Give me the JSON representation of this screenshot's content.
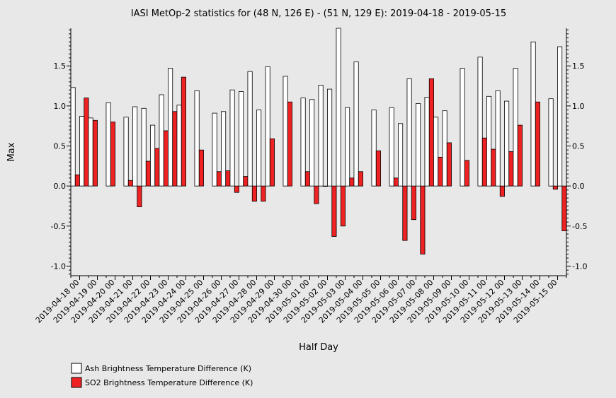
{
  "chart_data": {
    "type": "bar",
    "title": "IASI MetOp-2 statistics for (48 N, 126 E) - (51 N, 129 E): 2019-04-18 - 2019-05-15",
    "xlabel": "Half Day",
    "ylabel": "Max",
    "ylim": [
      -1.12,
      1.97
    ],
    "yticks": [
      "-1.0",
      "-0.5",
      "0.0",
      "0.5",
      "1.0",
      "1.5"
    ],
    "grid": false,
    "legend_position": "bottom-left",
    "x_tick_labels": [
      "2019-04-18 00",
      "2019-04-19 00",
      "2019-04-20 00",
      "2019-04-21 00",
      "2019-04-22 00",
      "2019-04-23 00",
      "2019-04-24 00",
      "2019-04-25 00",
      "2019-04-26 00",
      "2019-04-27 00",
      "2019-04-28 00",
      "2019-04-29 00",
      "2019-04-30 00",
      "2019-05-01 00",
      "2019-05-02 00",
      "2019-05-03 00",
      "2019-05-04 00",
      "2019-05-05 00",
      "2019-05-06 00",
      "2019-05-07 00",
      "2019-05-08 00",
      "2019-05-09 00",
      "2019-05-10 00",
      "2019-05-11 00",
      "2019-05-12 00",
      "2019-05-13 00",
      "2019-05-14 00",
      "2019-05-15 00"
    ],
    "series": [
      {
        "name": "Ash Brightness Temperature Difference (K)",
        "color": "#ffffff",
        "values": [
          1.23,
          0.87,
          0.85,
          null,
          1.04,
          null,
          0.86,
          0.99,
          0.97,
          0.76,
          1.14,
          1.47,
          1.01,
          null,
          1.19,
          null,
          0.91,
          0.93,
          1.2,
          1.18,
          1.43,
          0.95,
          1.49,
          null,
          1.37,
          null,
          1.1,
          1.08,
          1.26,
          1.21,
          1.97,
          0.98,
          1.55,
          null,
          0.95,
          null,
          0.98,
          0.78,
          1.34,
          1.03,
          1.11,
          0.86,
          0.94,
          null,
          1.47,
          null,
          1.61,
          1.12,
          1.19,
          1.06,
          1.47,
          null,
          1.8,
          null,
          1.09,
          1.74
        ]
      },
      {
        "name": "SO2 Brightness Temperature Difference (K)",
        "color": "#ee2222",
        "values": [
          0.14,
          1.1,
          0.82,
          null,
          0.8,
          null,
          0.07,
          -0.26,
          0.31,
          0.47,
          0.69,
          0.93,
          1.36,
          null,
          0.45,
          null,
          0.18,
          0.19,
          -0.08,
          0.12,
          -0.19,
          -0.19,
          0.59,
          null,
          1.05,
          null,
          0.18,
          -0.22,
          0.0,
          -0.63,
          -0.5,
          0.1,
          0.18,
          null,
          0.44,
          null,
          0.1,
          -0.68,
          -0.42,
          -0.85,
          1.34,
          0.36,
          0.54,
          null,
          0.32,
          null,
          0.6,
          0.46,
          -0.13,
          0.43,
          0.76,
          null,
          1.05,
          null,
          -0.04,
          -0.56
        ]
      }
    ]
  }
}
